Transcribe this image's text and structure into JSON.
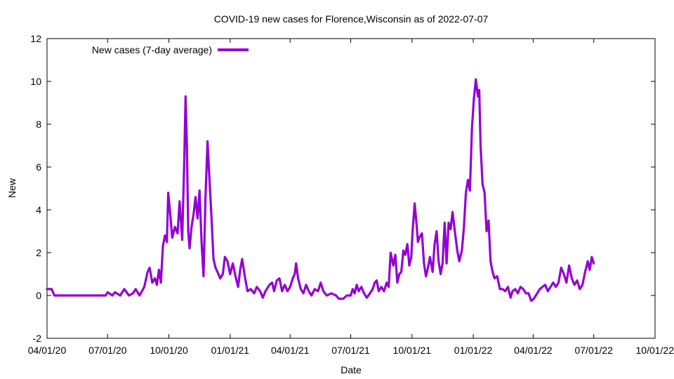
{
  "chart_data": {
    "type": "line",
    "title": "COVID-19 new cases for Florence,Wisconsin as of 2022-07-07",
    "xlabel": "Date",
    "ylabel": "New",
    "xlim": [
      "2020-04-01",
      "2022-10-01"
    ],
    "ylim": [
      -2,
      12
    ],
    "x_ticks": [
      "04/01/20",
      "07/01/20",
      "10/01/20",
      "01/01/21",
      "04/01/21",
      "07/01/21",
      "10/01/21",
      "01/01/22",
      "04/01/22",
      "07/01/22",
      "10/01/22"
    ],
    "x_tick_dates": [
      "2020-04-01",
      "2020-07-01",
      "2020-10-01",
      "2021-01-01",
      "2021-04-01",
      "2021-07-01",
      "2021-10-01",
      "2022-01-01",
      "2022-04-01",
      "2022-07-01",
      "2022-10-01"
    ],
    "y_ticks": [
      -2,
      0,
      2,
      4,
      6,
      8,
      10,
      12
    ],
    "grid": false,
    "legend_position": "top-left",
    "series": [
      {
        "name": "New cases (7-day average)",
        "color": "#9400d3",
        "points": [
          [
            "2020-04-01",
            0.3
          ],
          [
            "2020-04-08",
            0.3
          ],
          [
            "2020-04-12",
            0.0
          ],
          [
            "2020-05-01",
            0.0
          ],
          [
            "2020-06-01",
            0.0
          ],
          [
            "2020-06-28",
            0.0
          ],
          [
            "2020-07-01",
            0.15
          ],
          [
            "2020-07-08",
            0.0
          ],
          [
            "2020-07-12",
            0.15
          ],
          [
            "2020-07-20",
            0.0
          ],
          [
            "2020-07-26",
            0.3
          ],
          [
            "2020-08-02",
            0.0
          ],
          [
            "2020-08-08",
            0.1
          ],
          [
            "2020-08-12",
            0.3
          ],
          [
            "2020-08-18",
            0.0
          ],
          [
            "2020-08-25",
            0.4
          ],
          [
            "2020-08-30",
            1.1
          ],
          [
            "2020-09-02",
            1.3
          ],
          [
            "2020-09-06",
            0.6
          ],
          [
            "2020-09-10",
            0.8
          ],
          [
            "2020-09-13",
            0.5
          ],
          [
            "2020-09-16",
            1.2
          ],
          [
            "2020-09-19",
            0.6
          ],
          [
            "2020-09-22",
            2.3
          ],
          [
            "2020-09-25",
            2.8
          ],
          [
            "2020-09-28",
            2.5
          ],
          [
            "2020-09-30",
            4.8
          ],
          [
            "2020-10-03",
            3.8
          ],
          [
            "2020-10-06",
            2.7
          ],
          [
            "2020-10-10",
            3.2
          ],
          [
            "2020-10-14",
            2.9
          ],
          [
            "2020-10-17",
            4.4
          ],
          [
            "2020-10-19",
            3.5
          ],
          [
            "2020-10-21",
            2.6
          ],
          [
            "2020-10-24",
            6.2
          ],
          [
            "2020-10-26",
            9.3
          ],
          [
            "2020-10-28",
            7.0
          ],
          [
            "2020-10-30",
            3.0
          ],
          [
            "2020-11-01",
            2.2
          ],
          [
            "2020-11-04",
            3.2
          ],
          [
            "2020-11-07",
            3.8
          ],
          [
            "2020-11-10",
            4.6
          ],
          [
            "2020-11-13",
            3.6
          ],
          [
            "2020-11-16",
            4.9
          ],
          [
            "2020-11-19",
            2.5
          ],
          [
            "2020-11-22",
            0.9
          ],
          [
            "2020-11-25",
            4.6
          ],
          [
            "2020-11-28",
            7.2
          ],
          [
            "2020-12-01",
            5.4
          ],
          [
            "2020-12-04",
            3.6
          ],
          [
            "2020-12-07",
            1.7
          ],
          [
            "2020-12-10",
            1.3
          ],
          [
            "2020-12-13",
            1.1
          ],
          [
            "2020-12-17",
            0.8
          ],
          [
            "2020-12-21",
            1.0
          ],
          [
            "2020-12-24",
            1.8
          ],
          [
            "2020-12-28",
            1.6
          ],
          [
            "2021-01-01",
            1.0
          ],
          [
            "2021-01-05",
            1.5
          ],
          [
            "2021-01-09",
            0.9
          ],
          [
            "2021-01-13",
            0.4
          ],
          [
            "2021-01-16",
            1.2
          ],
          [
            "2021-01-19",
            1.7
          ],
          [
            "2021-01-23",
            0.9
          ],
          [
            "2021-01-27",
            0.2
          ],
          [
            "2021-02-01",
            0.3
          ],
          [
            "2021-02-06",
            0.1
          ],
          [
            "2021-02-10",
            0.4
          ],
          [
            "2021-02-15",
            0.2
          ],
          [
            "2021-02-19",
            -0.1
          ],
          [
            "2021-02-23",
            0.2
          ],
          [
            "2021-03-01",
            0.5
          ],
          [
            "2021-03-05",
            0.6
          ],
          [
            "2021-03-08",
            0.2
          ],
          [
            "2021-03-12",
            0.7
          ],
          [
            "2021-03-16",
            0.8
          ],
          [
            "2021-03-20",
            0.2
          ],
          [
            "2021-03-24",
            0.5
          ],
          [
            "2021-03-28",
            0.2
          ],
          [
            "2021-04-01",
            0.4
          ],
          [
            "2021-04-05",
            0.8
          ],
          [
            "2021-04-08",
            1.0
          ],
          [
            "2021-04-10",
            1.5
          ],
          [
            "2021-04-13",
            0.8
          ],
          [
            "2021-04-17",
            0.3
          ],
          [
            "2021-04-21",
            0.1
          ],
          [
            "2021-04-25",
            0.5
          ],
          [
            "2021-04-29",
            0.2
          ],
          [
            "2021-05-03",
            0.0
          ],
          [
            "2021-05-08",
            0.3
          ],
          [
            "2021-05-13",
            0.2
          ],
          [
            "2021-05-17",
            0.6
          ],
          [
            "2021-05-21",
            0.2
          ],
          [
            "2021-05-26",
            0.0
          ],
          [
            "2021-06-02",
            0.1
          ],
          [
            "2021-06-09",
            0.0
          ],
          [
            "2021-06-13",
            -0.15
          ],
          [
            "2021-06-20",
            -0.15
          ],
          [
            "2021-06-25",
            0.0
          ],
          [
            "2021-07-01",
            0.0
          ],
          [
            "2021-07-04",
            0.3
          ],
          [
            "2021-07-07",
            0.1
          ],
          [
            "2021-07-10",
            0.5
          ],
          [
            "2021-07-13",
            0.2
          ],
          [
            "2021-07-17",
            0.4
          ],
          [
            "2021-07-21",
            0.1
          ],
          [
            "2021-07-25",
            -0.1
          ],
          [
            "2021-07-30",
            0.1
          ],
          [
            "2021-08-03",
            0.3
          ],
          [
            "2021-08-06",
            0.6
          ],
          [
            "2021-08-09",
            0.7
          ],
          [
            "2021-08-12",
            0.2
          ],
          [
            "2021-08-16",
            0.4
          ],
          [
            "2021-08-20",
            0.2
          ],
          [
            "2021-08-24",
            0.6
          ],
          [
            "2021-08-27",
            0.4
          ],
          [
            "2021-08-30",
            2.0
          ],
          [
            "2021-09-03",
            1.4
          ],
          [
            "2021-09-06",
            1.9
          ],
          [
            "2021-09-09",
            0.6
          ],
          [
            "2021-09-12",
            1.0
          ],
          [
            "2021-09-15",
            1.1
          ],
          [
            "2021-09-18",
            2.1
          ],
          [
            "2021-09-21",
            1.9
          ],
          [
            "2021-09-24",
            2.4
          ],
          [
            "2021-09-27",
            1.4
          ],
          [
            "2021-09-30",
            1.8
          ],
          [
            "2021-10-02",
            3.0
          ],
          [
            "2021-10-05",
            4.3
          ],
          [
            "2021-10-08",
            3.3
          ],
          [
            "2021-10-10",
            2.5
          ],
          [
            "2021-10-12",
            2.7
          ],
          [
            "2021-10-16",
            2.9
          ],
          [
            "2021-10-19",
            1.5
          ],
          [
            "2021-10-22",
            0.9
          ],
          [
            "2021-10-25",
            1.3
          ],
          [
            "2021-10-28",
            1.8
          ],
          [
            "2021-11-01",
            1.1
          ],
          [
            "2021-11-04",
            2.4
          ],
          [
            "2021-11-07",
            3.0
          ],
          [
            "2021-11-10",
            1.6
          ],
          [
            "2021-11-13",
            1.0
          ],
          [
            "2021-11-16",
            1.5
          ],
          [
            "2021-11-19",
            3.4
          ],
          [
            "2021-11-22",
            1.5
          ],
          [
            "2021-11-25",
            3.4
          ],
          [
            "2021-11-28",
            3.1
          ],
          [
            "2021-12-01",
            3.9
          ],
          [
            "2021-12-04",
            3.1
          ],
          [
            "2021-12-08",
            2.1
          ],
          [
            "2021-12-11",
            1.6
          ],
          [
            "2021-12-15",
            2.1
          ],
          [
            "2021-12-18",
            3.2
          ],
          [
            "2021-12-21",
            4.8
          ],
          [
            "2021-12-24",
            5.4
          ],
          [
            "2021-12-27",
            4.9
          ],
          [
            "2021-12-30",
            7.8
          ],
          [
            "2022-01-02",
            9.2
          ],
          [
            "2022-01-05",
            10.1
          ],
          [
            "2022-01-08",
            9.3
          ],
          [
            "2022-01-10",
            9.6
          ],
          [
            "2022-01-12",
            7.0
          ],
          [
            "2022-01-15",
            5.2
          ],
          [
            "2022-01-18",
            4.8
          ],
          [
            "2022-01-21",
            3.0
          ],
          [
            "2022-01-24",
            3.5
          ],
          [
            "2022-01-27",
            1.6
          ],
          [
            "2022-01-30",
            1.1
          ],
          [
            "2022-02-02",
            0.8
          ],
          [
            "2022-02-06",
            0.9
          ],
          [
            "2022-02-10",
            0.3
          ],
          [
            "2022-02-14",
            0.3
          ],
          [
            "2022-02-18",
            0.2
          ],
          [
            "2022-02-22",
            0.4
          ],
          [
            "2022-02-26",
            -0.1
          ],
          [
            "2022-03-01",
            0.2
          ],
          [
            "2022-03-05",
            0.3
          ],
          [
            "2022-03-09",
            0.1
          ],
          [
            "2022-03-13",
            0.4
          ],
          [
            "2022-03-17",
            0.3
          ],
          [
            "2022-03-21",
            0.1
          ],
          [
            "2022-03-25",
            0.1
          ],
          [
            "2022-03-29",
            -0.25
          ],
          [
            "2022-04-02",
            -0.15
          ],
          [
            "2022-04-07",
            0.1
          ],
          [
            "2022-04-11",
            0.3
          ],
          [
            "2022-04-15",
            0.4
          ],
          [
            "2022-04-19",
            0.5
          ],
          [
            "2022-04-23",
            0.2
          ],
          [
            "2022-04-27",
            0.4
          ],
          [
            "2022-05-01",
            0.6
          ],
          [
            "2022-05-05",
            0.4
          ],
          [
            "2022-05-09",
            0.6
          ],
          [
            "2022-05-13",
            1.3
          ],
          [
            "2022-05-17",
            1.0
          ],
          [
            "2022-05-21",
            0.6
          ],
          [
            "2022-05-25",
            1.4
          ],
          [
            "2022-05-29",
            0.8
          ],
          [
            "2022-06-02",
            0.5
          ],
          [
            "2022-06-06",
            0.7
          ],
          [
            "2022-06-10",
            0.3
          ],
          [
            "2022-06-14",
            0.5
          ],
          [
            "2022-06-18",
            1.1
          ],
          [
            "2022-06-22",
            1.6
          ],
          [
            "2022-06-25",
            1.2
          ],
          [
            "2022-06-28",
            1.8
          ],
          [
            "2022-07-01",
            1.5
          ]
        ]
      }
    ]
  }
}
